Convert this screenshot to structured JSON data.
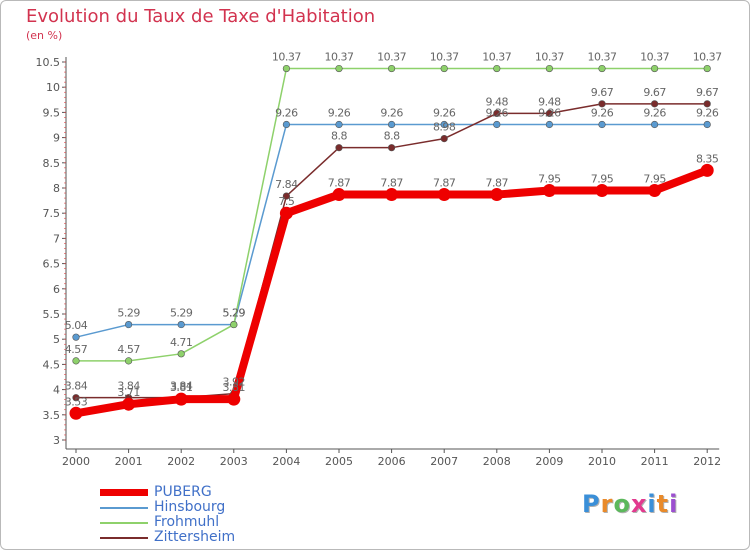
{
  "chart_data": {
    "type": "line",
    "title": "Evolution du Taux de Taxe d'Habitation",
    "subtitle": "(en %)",
    "categories": [
      "2000",
      "2001",
      "2002",
      "2003",
      "2004",
      "2005",
      "2006",
      "2007",
      "2008",
      "2009",
      "2010",
      "2011",
      "2012"
    ],
    "ylim": [
      3,
      10.5
    ],
    "yticks": [
      "3",
      "3.5",
      "4",
      "4.5",
      "5",
      "5.5",
      "6",
      "6.5",
      "7",
      "7.5",
      "8",
      "8.5",
      "9",
      "9.5",
      "10",
      "10.5"
    ],
    "grid": false,
    "series": [
      {
        "name": "PUBERG",
        "color": "#ee0000",
        "values": [
          3.53,
          3.71,
          3.81,
          3.81,
          7.5,
          7.87,
          7.87,
          7.87,
          7.87,
          7.95,
          7.95,
          7.95,
          8.35
        ],
        "labels": [
          "3.53",
          "3.71",
          "3.81",
          "3.81",
          "7.5",
          "7.87",
          "7.87",
          "7.87",
          "7.87",
          "7.95",
          "7.95",
          "7.95",
          "8.35"
        ]
      },
      {
        "name": "Hinsbourg",
        "color": "#5a9ad0",
        "values": [
          5.04,
          5.29,
          5.29,
          5.29,
          9.26,
          9.26,
          9.26,
          9.26,
          9.26,
          9.26,
          9.26,
          9.26,
          9.26
        ],
        "labels": [
          "5.04",
          "5.29",
          "5.29",
          "5.29",
          "9.26",
          "9.26",
          "9.26",
          "9.26",
          "9.26",
          "9.26",
          "9.26",
          "9.26",
          "9.26"
        ]
      },
      {
        "name": "Frohmuhl",
        "color": "#8ed16b",
        "values": [
          4.57,
          4.57,
          4.71,
          5.29,
          10.37,
          10.37,
          10.37,
          10.37,
          10.37,
          10.37,
          10.37,
          10.37,
          10.37
        ],
        "labels": [
          "4.57",
          "4.57",
          "4.71",
          "5.29",
          "10.37",
          "10.37",
          "10.37",
          "10.37",
          "10.37",
          "10.37",
          "10.37",
          "10.37",
          "10.37"
        ]
      },
      {
        "name": "Zittersheim",
        "color": "#7a2c2c",
        "values": [
          3.84,
          3.84,
          3.84,
          3.92,
          7.84,
          8.8,
          8.8,
          8.98,
          9.48,
          9.48,
          9.67,
          9.67,
          9.67
        ],
        "labels": [
          "3.84",
          "3.84",
          "3.84",
          "3.92",
          "7.84",
          "8.8",
          "8.8",
          "8.98",
          "9.48",
          "9.48",
          "9.67",
          "9.67",
          "9.67"
        ]
      }
    ]
  },
  "legend": {
    "items": [
      {
        "label": "PUBERG",
        "color": "#ee0000"
      },
      {
        "label": "Hinsbourg",
        "color": "#5a9ad0"
      },
      {
        "label": "Frohmuhl",
        "color": "#8ed16b"
      },
      {
        "label": "Zittersheim",
        "color": "#7a2c2c"
      }
    ]
  },
  "logo": {
    "text": "Proxiti",
    "letters": [
      "P",
      "r",
      "o",
      "x",
      "i",
      "t",
      "i"
    ],
    "colors": [
      "#3a8fd8",
      "#e98a2a",
      "#5cb85c",
      "#e23a8f",
      "#3a8fd8",
      "#e98a2a",
      "#9c4fd0"
    ]
  }
}
